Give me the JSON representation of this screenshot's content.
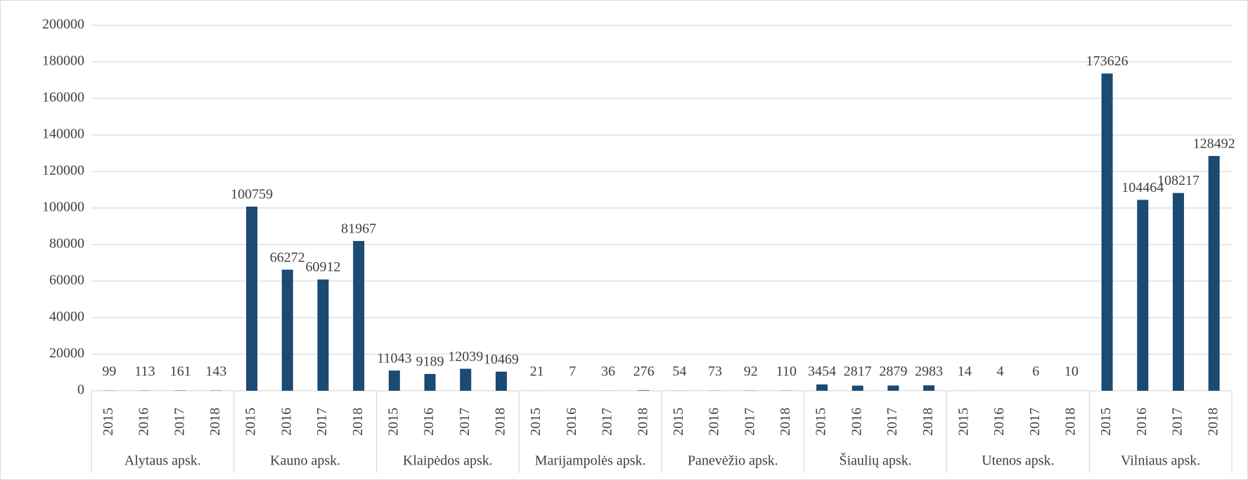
{
  "chart_data": {
    "type": "bar",
    "groups": [
      "Alytaus apsk.",
      "Kauno apsk.",
      "Klaipėdos apsk.",
      "Marijampolės apsk.",
      "Panevėžio apsk.",
      "Šiaulių apsk.",
      "Utenos apsk.",
      "Vilniaus apsk."
    ],
    "categories": [
      "2015",
      "2016",
      "2017",
      "2018",
      "2015",
      "2016",
      "2017",
      "2018",
      "2015",
      "2016",
      "2017",
      "2018",
      "2015",
      "2016",
      "2017",
      "2018",
      "2015",
      "2016",
      "2017",
      "2018",
      "2015",
      "2016",
      "2017",
      "2018",
      "2015",
      "2016",
      "2017",
      "2018",
      "2015",
      "2016",
      "2017",
      "2018"
    ],
    "values": [
      99,
      113,
      161,
      143,
      100759,
      66272,
      60912,
      81967,
      11043,
      9189,
      12039,
      10469,
      21,
      7,
      36,
      276,
      54,
      73,
      92,
      110,
      3454,
      2817,
      2879,
      2983,
      14,
      4,
      6,
      10,
      173626,
      104464,
      108217,
      128492
    ],
    "color": "#1b4a73",
    "ylim": [
      0,
      200000
    ],
    "yticks": [
      0,
      20000,
      40000,
      60000,
      80000,
      100000,
      120000,
      140000,
      160000,
      180000,
      200000
    ],
    "grid": true
  }
}
